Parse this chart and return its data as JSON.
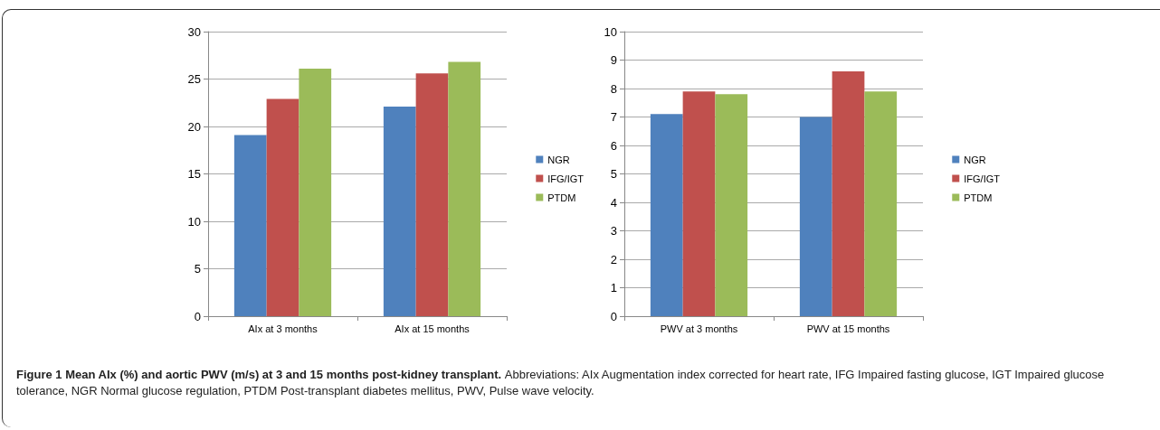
{
  "chart_data": [
    {
      "type": "bar",
      "categories": [
        "AIx at 3 months",
        "AIx at 15 months"
      ],
      "series": [
        {
          "name": "NGR",
          "color": "#4f81bd",
          "values": [
            19.1,
            22.1
          ]
        },
        {
          "name": "IFG/IGT",
          "color": "#c0504d",
          "values": [
            22.9,
            25.6
          ]
        },
        {
          "name": "PTDM",
          "color": "#9bbb59",
          "values": [
            26.1,
            26.8
          ]
        }
      ],
      "ylim": [
        0,
        30
      ],
      "yticks": [
        0,
        5,
        10,
        15,
        20,
        25,
        30
      ],
      "grid": "y",
      "legend": "right",
      "annotations": [
        "Figure 1 Mean AIx (%) and aortic PWV (m/s) at 3 and 15 months post-kidney transplant.",
        "Abbreviations: AIx Augmentation index corrected for heart rate, IFG Impaired fasting glucose, IGT Impaired glucose tolerance, NGR Normal glucose regulation, PTDM Post-transplant diabetes mellitus, PWV, Pulse wave velocity."
      ]
    },
    {
      "type": "bar",
      "categories": [
        "PWV at 3 months",
        "PWV at 15 months"
      ],
      "series": [
        {
          "name": "NGR",
          "color": "#4f81bd",
          "values": [
            7.1,
            7.0
          ]
        },
        {
          "name": "IFG/IGT",
          "color": "#c0504d",
          "values": [
            7.9,
            8.6
          ]
        },
        {
          "name": "PTDM",
          "color": "#9bbb59",
          "values": [
            7.8,
            7.9
          ]
        }
      ],
      "ylim": [
        0,
        10
      ],
      "yticks": [
        0,
        1,
        2,
        3,
        4,
        5,
        6,
        7,
        8,
        9,
        10
      ],
      "grid": "y",
      "legend": "right"
    }
  ]
}
